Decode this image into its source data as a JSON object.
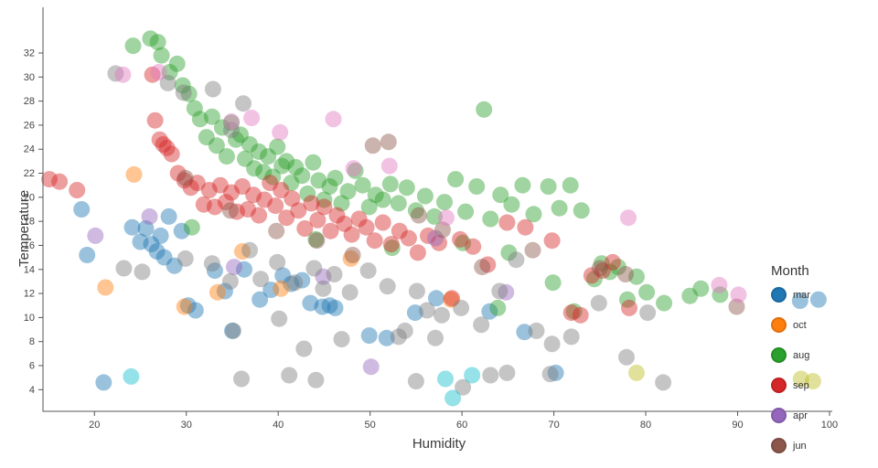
{
  "chart_data": {
    "type": "scatter",
    "xlabel": "Humidity",
    "ylabel": "Temperature",
    "legend_title": "Month",
    "xlim": [
      14.4,
      100.3
    ],
    "ylim": [
      2.2,
      35.8
    ],
    "x_ticks": [
      20,
      30,
      40,
      50,
      60,
      70,
      80,
      90,
      100
    ],
    "y_ticks": [
      4,
      6,
      8,
      10,
      12,
      14,
      16,
      18,
      20,
      22,
      24,
      26,
      28,
      30,
      32
    ],
    "grid": false,
    "legend_position": "right-bottom",
    "marker": {
      "radius": 9,
      "opacity": 0.45
    },
    "series": [
      {
        "name": "mar",
        "color": "#1f77b4",
        "in_legend": true,
        "points": [
          [
            18.6,
            19.0
          ],
          [
            19.2,
            15.2
          ],
          [
            21.0,
            4.6
          ],
          [
            24.1,
            17.5
          ],
          [
            25.0,
            16.3
          ],
          [
            25.6,
            17.4
          ],
          [
            26.2,
            16.1
          ],
          [
            26.8,
            15.5
          ],
          [
            27.2,
            16.8
          ],
          [
            27.6,
            15.0
          ],
          [
            28.1,
            18.4
          ],
          [
            28.7,
            14.3
          ],
          [
            29.5,
            17.2
          ],
          [
            30.2,
            11.0
          ],
          [
            31.0,
            10.6
          ],
          [
            33.1,
            13.9
          ],
          [
            34.2,
            12.2
          ],
          [
            35.0,
            8.9
          ],
          [
            36.3,
            14.0
          ],
          [
            38.0,
            11.5
          ],
          [
            39.2,
            12.3
          ],
          [
            40.5,
            13.5
          ],
          [
            41.4,
            12.8
          ],
          [
            42.6,
            13.1
          ],
          [
            43.5,
            11.2
          ],
          [
            44.8,
            10.9
          ],
          [
            45.6,
            11.0
          ],
          [
            46.2,
            10.8
          ],
          [
            49.9,
            8.5
          ],
          [
            51.8,
            8.3
          ],
          [
            54.9,
            10.4
          ],
          [
            57.2,
            11.6
          ],
          [
            63.0,
            10.5
          ],
          [
            66.8,
            8.8
          ],
          [
            70.2,
            5.4
          ],
          [
            96.8,
            11.4
          ],
          [
            98.8,
            11.5
          ]
        ]
      },
      {
        "name": "oct",
        "color": "#ff7f0e",
        "in_legend": true,
        "points": [
          [
            21.2,
            12.5
          ],
          [
            24.3,
            21.9
          ],
          [
            29.8,
            10.9
          ],
          [
            33.4,
            12.1
          ],
          [
            36.1,
            15.5
          ],
          [
            40.3,
            12.4
          ],
          [
            47.9,
            14.9
          ],
          [
            58.8,
            11.5
          ]
        ]
      },
      {
        "name": "aug",
        "color": "#2ca02c",
        "in_legend": true,
        "points": [
          [
            24.2,
            32.6
          ],
          [
            26.1,
            33.2
          ],
          [
            26.9,
            32.9
          ],
          [
            27.3,
            31.8
          ],
          [
            28.2,
            30.4
          ],
          [
            29.0,
            31.1
          ],
          [
            29.6,
            29.3
          ],
          [
            30.3,
            28.6
          ],
          [
            30.9,
            27.4
          ],
          [
            31.5,
            26.5
          ],
          [
            32.2,
            25.0
          ],
          [
            32.8,
            26.7
          ],
          [
            33.3,
            24.3
          ],
          [
            33.9,
            25.8
          ],
          [
            34.4,
            23.4
          ],
          [
            34.9,
            26.2
          ],
          [
            35.4,
            24.8
          ],
          [
            35.9,
            25.2
          ],
          [
            36.4,
            23.2
          ],
          [
            36.9,
            24.4
          ],
          [
            37.4,
            22.4
          ],
          [
            37.9,
            23.8
          ],
          [
            38.4,
            22.1
          ],
          [
            38.9,
            23.4
          ],
          [
            39.4,
            21.7
          ],
          [
            39.9,
            24.2
          ],
          [
            40.4,
            22.6
          ],
          [
            40.9,
            23.0
          ],
          [
            41.4,
            21.2
          ],
          [
            41.9,
            22.5
          ],
          [
            42.6,
            21.8
          ],
          [
            43.2,
            20.3
          ],
          [
            43.8,
            22.9
          ],
          [
            44.4,
            21.4
          ],
          [
            45.0,
            19.8
          ],
          [
            45.6,
            20.9
          ],
          [
            46.2,
            21.6
          ],
          [
            46.9,
            19.5
          ],
          [
            47.6,
            20.5
          ],
          [
            48.4,
            22.2
          ],
          [
            49.2,
            21.0
          ],
          [
            49.9,
            19.2
          ],
          [
            50.6,
            20.2
          ],
          [
            51.4,
            19.8
          ],
          [
            52.2,
            21.1
          ],
          [
            53.1,
            19.5
          ],
          [
            54.0,
            20.8
          ],
          [
            55.0,
            18.9
          ],
          [
            56.0,
            20.1
          ],
          [
            57.0,
            18.4
          ],
          [
            58.1,
            19.6
          ],
          [
            59.3,
            21.5
          ],
          [
            60.4,
            18.8
          ],
          [
            61.6,
            20.9
          ],
          [
            62.4,
            27.3
          ],
          [
            63.1,
            18.2
          ],
          [
            64.2,
            20.2
          ],
          [
            65.4,
            19.4
          ],
          [
            66.6,
            21.0
          ],
          [
            67.8,
            18.6
          ],
          [
            69.4,
            20.9
          ],
          [
            70.6,
            19.1
          ],
          [
            71.8,
            21.0
          ],
          [
            73.0,
            18.9
          ],
          [
            74.4,
            13.2
          ],
          [
            75.2,
            14.5
          ],
          [
            76.1,
            13.8
          ],
          [
            77.0,
            14.2
          ],
          [
            78.0,
            11.5
          ],
          [
            79.0,
            13.4
          ],
          [
            80.1,
            12.1
          ],
          [
            82.0,
            11.2
          ],
          [
            84.8,
            11.8
          ],
          [
            86.0,
            12.4
          ],
          [
            88.1,
            11.9
          ],
          [
            30.6,
            17.5
          ],
          [
            44.1,
            16.5
          ],
          [
            52.4,
            15.8
          ],
          [
            60.1,
            16.2
          ],
          [
            65.1,
            15.4
          ],
          [
            69.9,
            12.9
          ],
          [
            72.2,
            10.5
          ],
          [
            63.9,
            10.8
          ]
        ]
      },
      {
        "name": "sep",
        "color": "#d62728",
        "in_legend": true,
        "points": [
          [
            15.1,
            21.5
          ],
          [
            16.2,
            21.3
          ],
          [
            18.1,
            20.6
          ],
          [
            26.3,
            30.2
          ],
          [
            26.6,
            26.4
          ],
          [
            27.1,
            24.8
          ],
          [
            27.5,
            24.4
          ],
          [
            27.9,
            24.1
          ],
          [
            28.4,
            23.6
          ],
          [
            29.1,
            22.0
          ],
          [
            29.8,
            21.4
          ],
          [
            30.5,
            20.8
          ],
          [
            31.2,
            21.2
          ],
          [
            31.9,
            19.4
          ],
          [
            32.5,
            20.6
          ],
          [
            33.1,
            19.2
          ],
          [
            33.7,
            21.0
          ],
          [
            34.3,
            19.6
          ],
          [
            34.9,
            20.4
          ],
          [
            35.5,
            18.8
          ],
          [
            36.1,
            20.9
          ],
          [
            36.7,
            19.0
          ],
          [
            37.3,
            20.2
          ],
          [
            37.9,
            18.5
          ],
          [
            38.5,
            19.8
          ],
          [
            39.1,
            21.2
          ],
          [
            39.7,
            19.3
          ],
          [
            40.3,
            20.6
          ],
          [
            40.9,
            18.3
          ],
          [
            41.5,
            19.9
          ],
          [
            42.2,
            18.9
          ],
          [
            42.9,
            17.4
          ],
          [
            43.6,
            19.5
          ],
          [
            44.3,
            18.1
          ],
          [
            45.0,
            19.2
          ],
          [
            45.7,
            17.2
          ],
          [
            46.4,
            18.5
          ],
          [
            47.2,
            17.8
          ],
          [
            48.0,
            16.9
          ],
          [
            48.8,
            18.2
          ],
          [
            49.6,
            17.5
          ],
          [
            50.5,
            16.4
          ],
          [
            51.4,
            17.9
          ],
          [
            52.3,
            16.1
          ],
          [
            53.2,
            17.2
          ],
          [
            54.2,
            16.6
          ],
          [
            55.2,
            15.4
          ],
          [
            56.3,
            16.8
          ],
          [
            57.5,
            16.2
          ],
          [
            59.8,
            16.5
          ],
          [
            61.2,
            15.9
          ],
          [
            62.8,
            14.4
          ],
          [
            64.9,
            17.9
          ],
          [
            66.9,
            17.5
          ],
          [
            69.8,
            16.4
          ],
          [
            71.9,
            10.4
          ],
          [
            72.9,
            10.2
          ],
          [
            74.1,
            13.5
          ],
          [
            75.3,
            13.9
          ],
          [
            76.4,
            14.6
          ],
          [
            78.2,
            10.8
          ],
          [
            58.9,
            11.6
          ]
        ]
      },
      {
        "name": "apr",
        "color": "#9467bd",
        "in_legend": true,
        "points": [
          [
            20.1,
            16.8
          ],
          [
            26.0,
            18.4
          ],
          [
            35.2,
            14.2
          ],
          [
            44.9,
            13.4
          ],
          [
            50.1,
            5.9
          ],
          [
            57.1,
            16.6
          ],
          [
            64.8,
            12.1
          ]
        ]
      },
      {
        "name": "jun",
        "color": "#8c564b",
        "in_legend": true,
        "points": [
          [
            29.9,
            21.6
          ],
          [
            34.8,
            18.9
          ],
          [
            39.8,
            17.2
          ],
          [
            44.2,
            16.4
          ],
          [
            48.1,
            15.2
          ],
          [
            50.3,
            24.3
          ],
          [
            52.0,
            24.6
          ],
          [
            55.3,
            18.5
          ],
          [
            57.9,
            17.3
          ],
          [
            62.2,
            14.2
          ],
          [
            67.7,
            15.6
          ],
          [
            75.0,
            14.1
          ],
          [
            77.8,
            13.6
          ],
          [
            89.9,
            10.9
          ]
        ]
      },
      {
        "name": "",
        "color": "#7f7f7f",
        "in_legend": false,
        "points": [
          [
            22.3,
            30.3
          ],
          [
            28.0,
            29.5
          ],
          [
            29.7,
            28.7
          ],
          [
            32.9,
            29.0
          ],
          [
            34.9,
            25.6
          ],
          [
            36.2,
            27.8
          ],
          [
            23.2,
            14.1
          ],
          [
            25.2,
            13.8
          ],
          [
            29.9,
            14.9
          ],
          [
            32.8,
            14.5
          ],
          [
            34.8,
            13.0
          ],
          [
            36.9,
            15.6
          ],
          [
            38.1,
            13.2
          ],
          [
            39.9,
            14.6
          ],
          [
            41.8,
            12.9
          ],
          [
            43.9,
            14.1
          ],
          [
            44.9,
            12.4
          ],
          [
            46.1,
            13.6
          ],
          [
            47.8,
            12.1
          ],
          [
            49.8,
            13.9
          ],
          [
            51.9,
            12.6
          ],
          [
            53.8,
            8.9
          ],
          [
            55.1,
            12.2
          ],
          [
            56.2,
            10.6
          ],
          [
            57.8,
            10.2
          ],
          [
            59.9,
            10.8
          ],
          [
            62.1,
            9.4
          ],
          [
            64.1,
            12.2
          ],
          [
            65.9,
            14.8
          ],
          [
            68.1,
            8.9
          ],
          [
            69.8,
            7.8
          ],
          [
            71.9,
            8.4
          ],
          [
            74.9,
            11.2
          ],
          [
            77.9,
            6.7
          ],
          [
            80.2,
            10.4
          ],
          [
            81.9,
            4.6
          ],
          [
            35.1,
            8.9
          ],
          [
            40.1,
            9.9
          ],
          [
            42.8,
            7.4
          ],
          [
            46.9,
            8.2
          ],
          [
            53.1,
            8.4
          ],
          [
            57.1,
            8.3
          ],
          [
            64.9,
            5.4
          ],
          [
            69.6,
            5.3
          ],
          [
            36.0,
            4.9
          ],
          [
            41.2,
            5.2
          ],
          [
            44.1,
            4.8
          ],
          [
            55.0,
            4.7
          ],
          [
            60.1,
            4.2
          ],
          [
            63.1,
            5.2
          ]
        ]
      },
      {
        "name": "",
        "color": "#17becf",
        "in_legend": false,
        "points": [
          [
            24.0,
            5.1
          ],
          [
            58.2,
            4.9
          ],
          [
            59.0,
            3.3
          ],
          [
            61.1,
            5.2
          ]
        ]
      },
      {
        "name": "",
        "color": "#e377c2",
        "in_legend": false,
        "points": [
          [
            23.1,
            30.2
          ],
          [
            27.0,
            30.4
          ],
          [
            34.9,
            26.3
          ],
          [
            37.1,
            26.6
          ],
          [
            40.2,
            25.4
          ],
          [
            46.0,
            26.5
          ],
          [
            48.2,
            22.4
          ],
          [
            52.1,
            22.6
          ],
          [
            58.3,
            18.3
          ],
          [
            78.1,
            18.3
          ],
          [
            88.0,
            12.7
          ],
          [
            90.1,
            11.9
          ]
        ]
      },
      {
        "name": "",
        "color": "#bcbd22",
        "in_legend": false,
        "points": [
          [
            79.0,
            5.4
          ],
          [
            96.9,
            4.9
          ],
          [
            98.2,
            4.7
          ]
        ]
      }
    ]
  }
}
